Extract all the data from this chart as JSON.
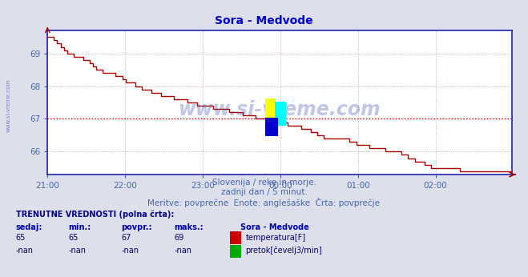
{
  "title": "Sora - Medvode",
  "title_color": "#0000cc",
  "bg_color": "#dde0ea",
  "plot_bg_color": "#ffffff",
  "line_color": "#aa0000",
  "avg_line_color": "#cc0000",
  "avg_value": 67.0,
  "ylim": [
    65.3,
    69.7
  ],
  "yticks": [
    66,
    67,
    68,
    69
  ],
  "tick_color": "#4466aa",
  "grid_color": "#cc9999",
  "axis_color": "#2222aa",
  "watermark_text": "www.si-vreme.com",
  "watermark_color": "#3344aa",
  "watermark_alpha": 0.3,
  "subtitle1": "Slovenija / reke in morje.",
  "subtitle2": "zadnji dan / 5 minut.",
  "subtitle3": "Meritve: povprečne  Enote: anglešaške  Črta: povprečje",
  "subtitle_color": "#4466aa",
  "legend_title": "Sora - Medvode",
  "legend_items": [
    {
      "label": "temperatura[F]",
      "color": "#cc0000"
    },
    {
      "label": "pretok[čevelj3/min]",
      "color": "#00aa00"
    }
  ],
  "table_headers": [
    "sedaj:",
    "min.:",
    "povpr.:",
    "maks.:"
  ],
  "table_rows": [
    [
      "65",
      "65",
      "67",
      "69"
    ],
    [
      "-nan",
      "-nan",
      "-nan",
      "-nan"
    ]
  ],
  "xtick_labels": [
    "21:00",
    "22:00",
    "23:00",
    "00:00",
    "01:00",
    "02:00"
  ],
  "total_points": 432,
  "temperature_data": [
    69.5,
    69.5,
    69.4,
    69.3,
    69.2,
    69.1,
    69.0,
    69.0,
    68.9,
    68.9,
    68.9,
    68.8,
    68.8,
    68.7,
    68.6,
    68.5,
    68.5,
    68.4,
    68.4,
    68.4,
    68.4,
    68.3,
    68.3,
    68.2,
    68.1,
    68.1,
    68.1,
    68.0,
    68.0,
    67.9,
    67.9,
    67.9,
    67.8,
    67.8,
    67.8,
    67.7,
    67.7,
    67.7,
    67.7,
    67.6,
    67.6,
    67.6,
    67.6,
    67.5,
    67.5,
    67.5,
    67.4,
    67.4,
    67.4,
    67.4,
    67.4,
    67.3,
    67.3,
    67.3,
    67.3,
    67.3,
    67.2,
    67.2,
    67.2,
    67.2,
    67.1,
    67.1,
    67.1,
    67.1,
    67.0,
    67.0,
    67.0,
    67.0,
    67.0,
    67.0,
    66.9,
    66.9,
    66.9,
    66.9,
    66.8,
    66.8,
    66.8,
    66.8,
    66.7,
    66.7,
    66.7,
    66.6,
    66.6,
    66.5,
    66.5,
    66.4,
    66.4,
    66.4,
    66.4,
    66.4,
    66.4,
    66.4,
    66.4,
    66.3,
    66.3,
    66.2,
    66.2,
    66.2,
    66.2,
    66.1,
    66.1,
    66.1,
    66.1,
    66.1,
    66.0,
    66.0,
    66.0,
    66.0,
    66.0,
    65.9,
    65.9,
    65.8,
    65.8,
    65.7,
    65.7,
    65.7,
    65.6,
    65.6,
    65.5,
    65.5,
    65.5,
    65.5,
    65.5,
    65.5,
    65.5,
    65.5,
    65.5,
    65.4,
    65.4,
    65.4,
    65.4,
    65.4,
    65.4,
    65.4,
    65.4,
    65.4,
    65.4,
    65.4,
    65.4,
    65.4,
    65.4,
    65.4,
    65.4,
    65.4
  ]
}
